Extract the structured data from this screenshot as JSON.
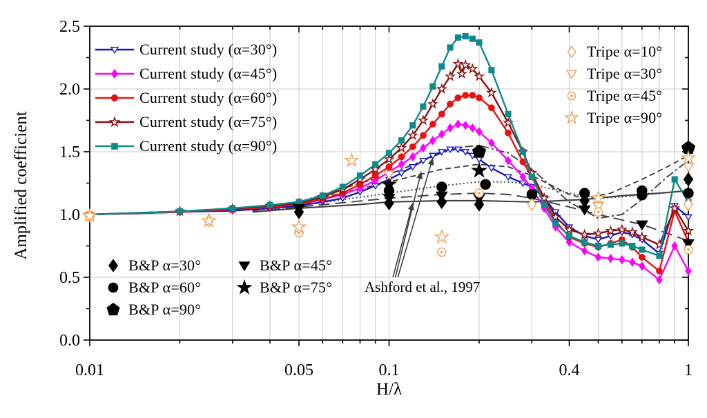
{
  "axes": {
    "x": {
      "label": "H/λ",
      "scale": "log",
      "min": 0.01,
      "max": 1,
      "major_ticks": [
        0.01,
        0.05,
        0.1,
        0.4,
        1
      ],
      "major_labels": [
        "0.01",
        "0.05",
        "0.1",
        "0.4",
        "1"
      ],
      "minor_ticks": [
        0.02,
        0.03,
        0.04,
        0.06,
        0.07,
        0.08,
        0.09,
        0.2,
        0.3,
        0.5,
        0.6,
        0.7,
        0.8,
        0.9
      ],
      "gridlines": [
        0.02,
        0.03,
        0.04,
        0.05,
        0.06,
        0.07,
        0.08,
        0.09,
        0.1,
        0.2,
        0.3,
        0.4,
        0.5,
        0.6,
        0.7,
        0.8,
        0.9
      ]
    },
    "y": {
      "label": "Amplified coefficient",
      "min": 0,
      "max": 2.5,
      "major_ticks": [
        0,
        0.5,
        1,
        1.5,
        2,
        2.5
      ],
      "major_labels": [
        "0.0",
        "0.5",
        "1.0",
        "1.5",
        "2.0",
        "2.5"
      ],
      "minor_ticks": [
        0.25,
        0.75,
        1.25,
        1.75,
        2.25
      ],
      "gridlines": [
        0.5,
        1,
        1.5,
        2
      ]
    }
  },
  "chart_data": {
    "type": "line",
    "title": "",
    "xlabel": "H/λ",
    "ylabel": "Amplified coefficient",
    "xlim": [
      0.01,
      1
    ],
    "ylim": [
      0,
      2.5
    ],
    "grid": true,
    "series": [
      {
        "label": "Current study (α=30°)",
        "color": "#1818cc",
        "marker": "tri-down",
        "fill": "open",
        "x": [
          0.01,
          0.02,
          0.03,
          0.04,
          0.05,
          0.06,
          0.07,
          0.08,
          0.09,
          0.1,
          0.11,
          0.12,
          0.13,
          0.14,
          0.15,
          0.16,
          0.17,
          0.18,
          0.19,
          0.2,
          0.22,
          0.25,
          0.28,
          0.3,
          0.33,
          0.36,
          0.4,
          0.45,
          0.5,
          0.55,
          0.6,
          0.65,
          0.7,
          0.8,
          0.9,
          1.0
        ],
        "y": [
          1.0,
          1.02,
          1.03,
          1.05,
          1.07,
          1.1,
          1.13,
          1.18,
          1.23,
          1.28,
          1.33,
          1.38,
          1.43,
          1.47,
          1.5,
          1.52,
          1.52,
          1.5,
          1.47,
          1.44,
          1.37,
          1.3,
          1.25,
          1.22,
          1.13,
          1.02,
          0.9,
          0.83,
          0.8,
          0.83,
          0.86,
          0.84,
          0.8,
          0.69,
          1.07,
          0.98
        ]
      },
      {
        "label": "Current study (α=45°)",
        "color": "#ff00ff",
        "marker": "diamond",
        "fill": "filled",
        "x": [
          0.01,
          0.02,
          0.03,
          0.04,
          0.05,
          0.06,
          0.07,
          0.08,
          0.09,
          0.1,
          0.11,
          0.12,
          0.13,
          0.14,
          0.15,
          0.16,
          0.17,
          0.18,
          0.19,
          0.2,
          0.22,
          0.25,
          0.28,
          0.3,
          0.33,
          0.36,
          0.4,
          0.45,
          0.5,
          0.55,
          0.6,
          0.65,
          0.7,
          0.8,
          0.9,
          1.0
        ],
        "y": [
          1.0,
          1.02,
          1.04,
          1.06,
          1.09,
          1.12,
          1.16,
          1.21,
          1.27,
          1.34,
          1.4,
          1.46,
          1.53,
          1.59,
          1.64,
          1.69,
          1.72,
          1.71,
          1.69,
          1.66,
          1.57,
          1.43,
          1.3,
          1.21,
          1.05,
          0.9,
          0.78,
          0.71,
          0.66,
          0.65,
          0.64,
          0.62,
          0.59,
          0.48,
          0.75,
          0.55
        ]
      },
      {
        "label": "Current study (α=60°)",
        "color": "#e81212",
        "marker": "circle",
        "fill": "filled",
        "x": [
          0.01,
          0.02,
          0.03,
          0.04,
          0.05,
          0.06,
          0.07,
          0.08,
          0.09,
          0.1,
          0.11,
          0.12,
          0.13,
          0.14,
          0.15,
          0.16,
          0.17,
          0.18,
          0.19,
          0.2,
          0.22,
          0.25,
          0.28,
          0.3,
          0.33,
          0.36,
          0.4,
          0.45,
          0.5,
          0.55,
          0.6,
          0.65,
          0.7,
          0.8,
          0.9,
          1.0
        ],
        "y": [
          1.0,
          1.02,
          1.04,
          1.06,
          1.08,
          1.12,
          1.17,
          1.24,
          1.31,
          1.38,
          1.46,
          1.54,
          1.63,
          1.72,
          1.8,
          1.88,
          1.93,
          1.95,
          1.95,
          1.93,
          1.85,
          1.65,
          1.42,
          1.3,
          1.1,
          0.95,
          0.82,
          0.77,
          0.74,
          0.77,
          0.8,
          0.74,
          0.66,
          0.55,
          1.03,
          0.78
        ]
      },
      {
        "label": "Current study (α=75°)",
        "color": "#8b0f0f",
        "marker": "star",
        "fill": "open",
        "x": [
          0.01,
          0.02,
          0.03,
          0.04,
          0.05,
          0.06,
          0.07,
          0.08,
          0.09,
          0.1,
          0.11,
          0.12,
          0.13,
          0.14,
          0.15,
          0.16,
          0.17,
          0.175,
          0.18,
          0.19,
          0.2,
          0.22,
          0.25,
          0.28,
          0.3,
          0.33,
          0.36,
          0.4,
          0.45,
          0.5,
          0.55,
          0.6,
          0.65,
          0.7,
          0.8,
          0.9,
          1.0
        ],
        "y": [
          1.0,
          1.025,
          1.045,
          1.07,
          1.09,
          1.14,
          1.2,
          1.28,
          1.36,
          1.44,
          1.53,
          1.63,
          1.75,
          1.88,
          2.0,
          2.1,
          2.2,
          2.12,
          2.19,
          2.16,
          2.1,
          1.97,
          1.73,
          1.5,
          1.33,
          1.13,
          0.98,
          0.88,
          0.84,
          0.85,
          0.87,
          0.88,
          0.86,
          0.82,
          0.76,
          1.05,
          0.87
        ]
      },
      {
        "label": "Current study (α=90°)",
        "color": "#0e8a8a",
        "marker": "square",
        "fill": "filled",
        "x": [
          0.01,
          0.02,
          0.03,
          0.04,
          0.05,
          0.06,
          0.07,
          0.08,
          0.09,
          0.1,
          0.11,
          0.12,
          0.13,
          0.14,
          0.15,
          0.16,
          0.17,
          0.18,
          0.19,
          0.2,
          0.22,
          0.25,
          0.28,
          0.3,
          0.33,
          0.36,
          0.4,
          0.45,
          0.5,
          0.55,
          0.6,
          0.65,
          0.7,
          0.8,
          0.9,
          1.0
        ],
        "y": [
          1.0,
          1.025,
          1.05,
          1.075,
          1.1,
          1.15,
          1.22,
          1.31,
          1.4,
          1.49,
          1.59,
          1.71,
          1.86,
          2.02,
          2.18,
          2.33,
          2.41,
          2.42,
          2.4,
          2.37,
          2.15,
          1.8,
          1.5,
          1.3,
          1.08,
          0.93,
          0.83,
          0.78,
          0.75,
          0.76,
          0.77,
          0.75,
          0.72,
          0.67,
          1.28,
          1.1
        ]
      }
    ],
    "reference_curves": [
      {
        "label": "Ashford et al., 1997 curve 1",
        "style": "solid",
        "x": [
          0.035,
          0.05,
          0.08,
          0.1,
          0.15,
          0.2,
          0.3,
          0.45,
          0.6,
          0.8,
          1.0
        ],
        "y": [
          1.02,
          1.05,
          1.08,
          1.1,
          1.11,
          1.11,
          1.1,
          1.12,
          1.15,
          1.17,
          1.19
        ]
      },
      {
        "label": "Ashford et al., 1997 curve 2",
        "style": "long-dash",
        "x": [
          0.035,
          0.05,
          0.1,
          0.15,
          0.2,
          0.25,
          0.3,
          0.4,
          0.5,
          0.7,
          0.85,
          1.0
        ],
        "y": [
          1.02,
          1.06,
          1.13,
          1.16,
          1.17,
          1.16,
          1.13,
          1.06,
          1.0,
          0.92,
          0.85,
          0.79
        ]
      },
      {
        "label": "Ashford et al., 1997 curve 3",
        "style": "dotted",
        "x": [
          0.035,
          0.05,
          0.1,
          0.15,
          0.2,
          0.25,
          0.3,
          0.4,
          0.5,
          0.6,
          0.8,
          1.0
        ],
        "y": [
          1.02,
          1.07,
          1.17,
          1.23,
          1.26,
          1.26,
          1.24,
          1.17,
          1.13,
          1.14,
          1.17,
          1.19
        ]
      },
      {
        "label": "Ashford et al., 1997 curve 4",
        "style": "dashed",
        "x": [
          0.035,
          0.05,
          0.1,
          0.15,
          0.2,
          0.25,
          0.3,
          0.4,
          0.45,
          0.55,
          0.7,
          0.85,
          1.0
        ],
        "y": [
          1.03,
          1.09,
          1.26,
          1.36,
          1.4,
          1.38,
          1.31,
          1.16,
          1.13,
          1.17,
          1.28,
          1.38,
          1.47
        ]
      },
      {
        "label": "Ashford et al., 1997 curve 5",
        "style": "dash-dot",
        "x": [
          0.035,
          0.05,
          0.1,
          0.15,
          0.18,
          0.2,
          0.25,
          0.3,
          0.4,
          0.5,
          0.6,
          0.7,
          0.85,
          1.0
        ],
        "y": [
          1.03,
          1.1,
          1.32,
          1.49,
          1.54,
          1.55,
          1.49,
          1.36,
          1.1,
          0.97,
          1.0,
          1.12,
          1.3,
          1.43
        ]
      }
    ],
    "scatter_series": [
      {
        "label": "B&P α=30°",
        "color": "#000000",
        "marker": "diamond",
        "fill": "filled",
        "size": 7,
        "points": [
          [
            0.05,
            1.02
          ],
          [
            0.1,
            1.09
          ],
          [
            0.15,
            1.1
          ],
          [
            0.2,
            1.08
          ],
          [
            0.45,
            1.11
          ],
          [
            1.0,
            1.28
          ]
        ]
      },
      {
        "label": "B&P α=45°",
        "color": "#000000",
        "marker": "tri-down",
        "fill": "filled",
        "size": 7,
        "points": [
          [
            0.05,
            1.05
          ],
          [
            0.1,
            1.13
          ],
          [
            0.15,
            1.15
          ],
          [
            0.2,
            1.13
          ],
          [
            0.45,
            1.04
          ],
          [
            0.7,
            0.92
          ],
          [
            1.0,
            0.77
          ]
        ]
      },
      {
        "label": "B&P α=60°",
        "color": "#000000",
        "marker": "circle",
        "fill": "filled",
        "size": 7,
        "points": [
          [
            0.1,
            1.19
          ],
          [
            0.15,
            1.22
          ],
          [
            0.21,
            1.24
          ],
          [
            0.3,
            1.16
          ],
          [
            0.45,
            1.17
          ],
          [
            0.7,
            1.19
          ],
          [
            0.7,
            1.155
          ],
          [
            1.0,
            1.17
          ]
        ]
      },
      {
        "label": "B&P α=75°",
        "color": "#000000",
        "marker": "star",
        "fill": "filled",
        "size": 7,
        "points": [
          [
            0.1,
            1.24
          ],
          [
            0.2,
            1.35
          ]
        ]
      },
      {
        "label": "B&P α=90°",
        "color": "#000000",
        "marker": "pentagon",
        "fill": "filled",
        "size": 7.5,
        "points": [
          [
            0.2,
            1.5
          ],
          [
            1.0,
            1.53
          ]
        ]
      },
      {
        "label": "Tripe α=10°",
        "color": "#f0a055",
        "marker": "diamond",
        "fill": "open",
        "size": 6.5,
        "points": [
          [
            0.01,
            0.99
          ],
          [
            0.025,
            0.95
          ],
          [
            0.3,
            1.08
          ],
          [
            1.0,
            1.08
          ]
        ]
      },
      {
        "label": "Tripe α=30°",
        "color": "#f0a055",
        "marker": "tri-down",
        "fill": "open",
        "size": 6.5,
        "points": [
          [
            0.01,
            0.99
          ],
          [
            0.1,
            1.32
          ],
          [
            0.5,
            1.07
          ],
          [
            1.0,
            1.38
          ]
        ]
      },
      {
        "label": "Tripe α=45°",
        "color": "#f0a055",
        "marker": "circle",
        "fill": "dot",
        "size": 6,
        "points": [
          [
            0.01,
            0.985
          ],
          [
            0.05,
            0.855
          ],
          [
            0.15,
            0.7
          ],
          [
            0.2,
            1.17
          ],
          [
            0.5,
            1.02
          ],
          [
            1.0,
            0.72
          ]
        ]
      },
      {
        "label": "Tripe α=90°",
        "color": "#f0a055",
        "marker": "star",
        "fill": "open",
        "size": 6.5,
        "points": [
          [
            0.01,
            0.99
          ],
          [
            0.025,
            0.95
          ],
          [
            0.05,
            0.9
          ],
          [
            0.075,
            1.43
          ],
          [
            0.15,
            0.82
          ],
          [
            0.5,
            1.13
          ],
          [
            1.0,
            1.45
          ]
        ]
      }
    ],
    "annotation": {
      "text": "Ashford et al., 1997",
      "arrows": [
        {
          "from": [
            0.107,
            0.5
          ],
          "to": [
            0.14,
            1.45
          ]
        },
        {
          "from": [
            0.105,
            0.5
          ],
          "to": [
            0.128,
            1.34
          ]
        },
        {
          "from": [
            0.103,
            0.5
          ],
          "to": [
            0.12,
            1.09
          ]
        }
      ]
    },
    "colors": {
      "grid": "#cbcbcb",
      "axis": "#000000",
      "reference": "#3f3f3f",
      "tripe_orange": "#f0a055"
    }
  }
}
